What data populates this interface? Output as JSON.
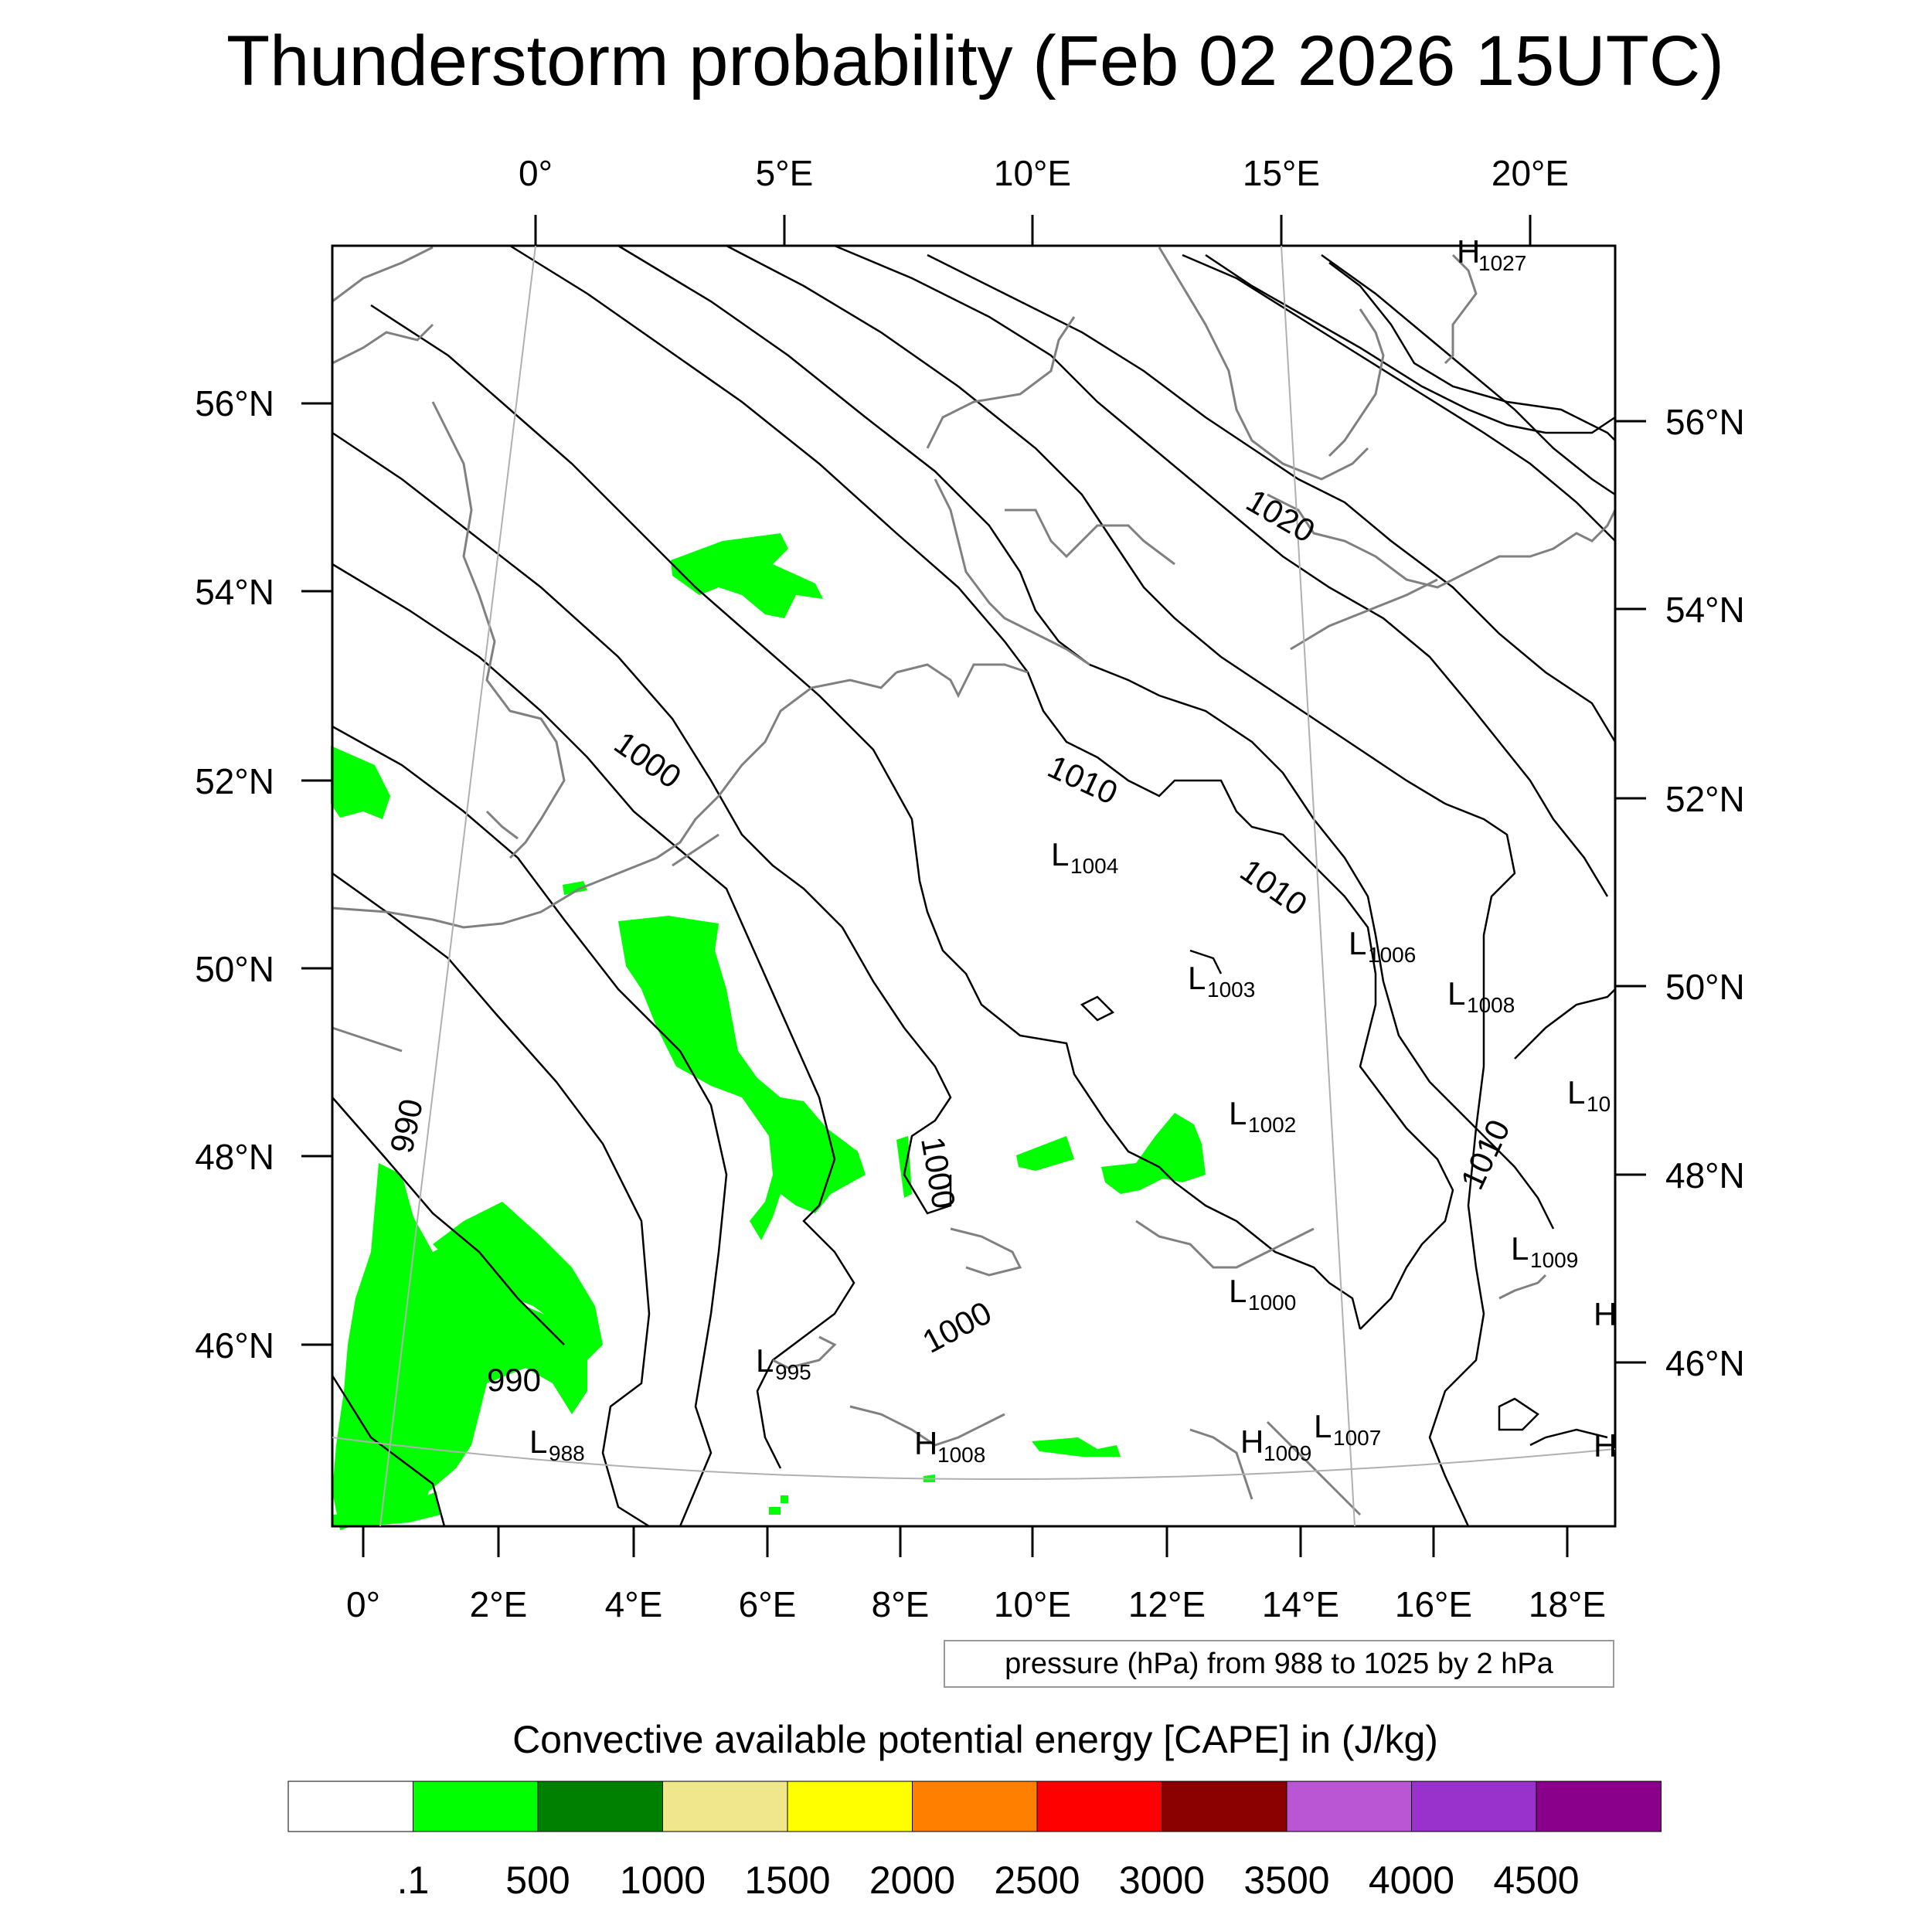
{
  "title": "Thunderstorm probability (Feb 02 2026 15UTC)",
  "top_lon_labels": [
    "0°",
    "5°E",
    "10°E",
    "15°E",
    "20°E"
  ],
  "bottom_lon_labels": [
    "0°",
    "2°E",
    "4°E",
    "6°E",
    "8°E",
    "10°E",
    "12°E",
    "14°E",
    "16°E",
    "18°E"
  ],
  "left_lat_labels": [
    "56°N",
    "54°N",
    "52°N",
    "50°N",
    "48°N",
    "46°N"
  ],
  "right_lat_labels": [
    "56°N",
    "54°N",
    "52°N",
    "50°N",
    "48°N",
    "46°N"
  ],
  "contour_labels": [
    "1020",
    "1000",
    "1010",
    "1010",
    "1010",
    "1000",
    "990",
    "990",
    "1000"
  ],
  "pressure_centers": [
    {
      "type": "H",
      "value": "1027"
    },
    {
      "type": "L",
      "value": "1004"
    },
    {
      "type": "L",
      "value": "1006"
    },
    {
      "type": "L",
      "value": "1003"
    },
    {
      "type": "L",
      "value": "1008"
    },
    {
      "type": "L",
      "value": "10"
    },
    {
      "type": "L",
      "value": "1002"
    },
    {
      "type": "L",
      "value": "1009"
    },
    {
      "type": "L",
      "value": "1000"
    },
    {
      "type": "H",
      "value": ""
    },
    {
      "type": "L",
      "value": "995"
    },
    {
      "type": "L",
      "value": "988"
    },
    {
      "type": "H",
      "value": "1008"
    },
    {
      "type": "H",
      "value": "1009"
    },
    {
      "type": "L",
      "value": "1007"
    },
    {
      "type": "H",
      "value": ""
    }
  ],
  "info_box": "pressure (hPa) from 988 to 1025 by 2 hPa",
  "colorbar": {
    "title": "Convective available potential energy [CAPE] in (J/kg)",
    "colors": [
      "#ffffff",
      "#00ff00",
      "#008000",
      "#f0e68c",
      "#ffff00",
      "#ff8000",
      "#ff0000",
      "#8b0000",
      "#ba55d3",
      "#9932cc",
      "#8b008b"
    ],
    "tick_labels": [
      ".1",
      "500",
      "1000",
      "1500",
      "2000",
      "2500",
      "3000",
      "3500",
      "4000",
      "4500"
    ]
  }
}
